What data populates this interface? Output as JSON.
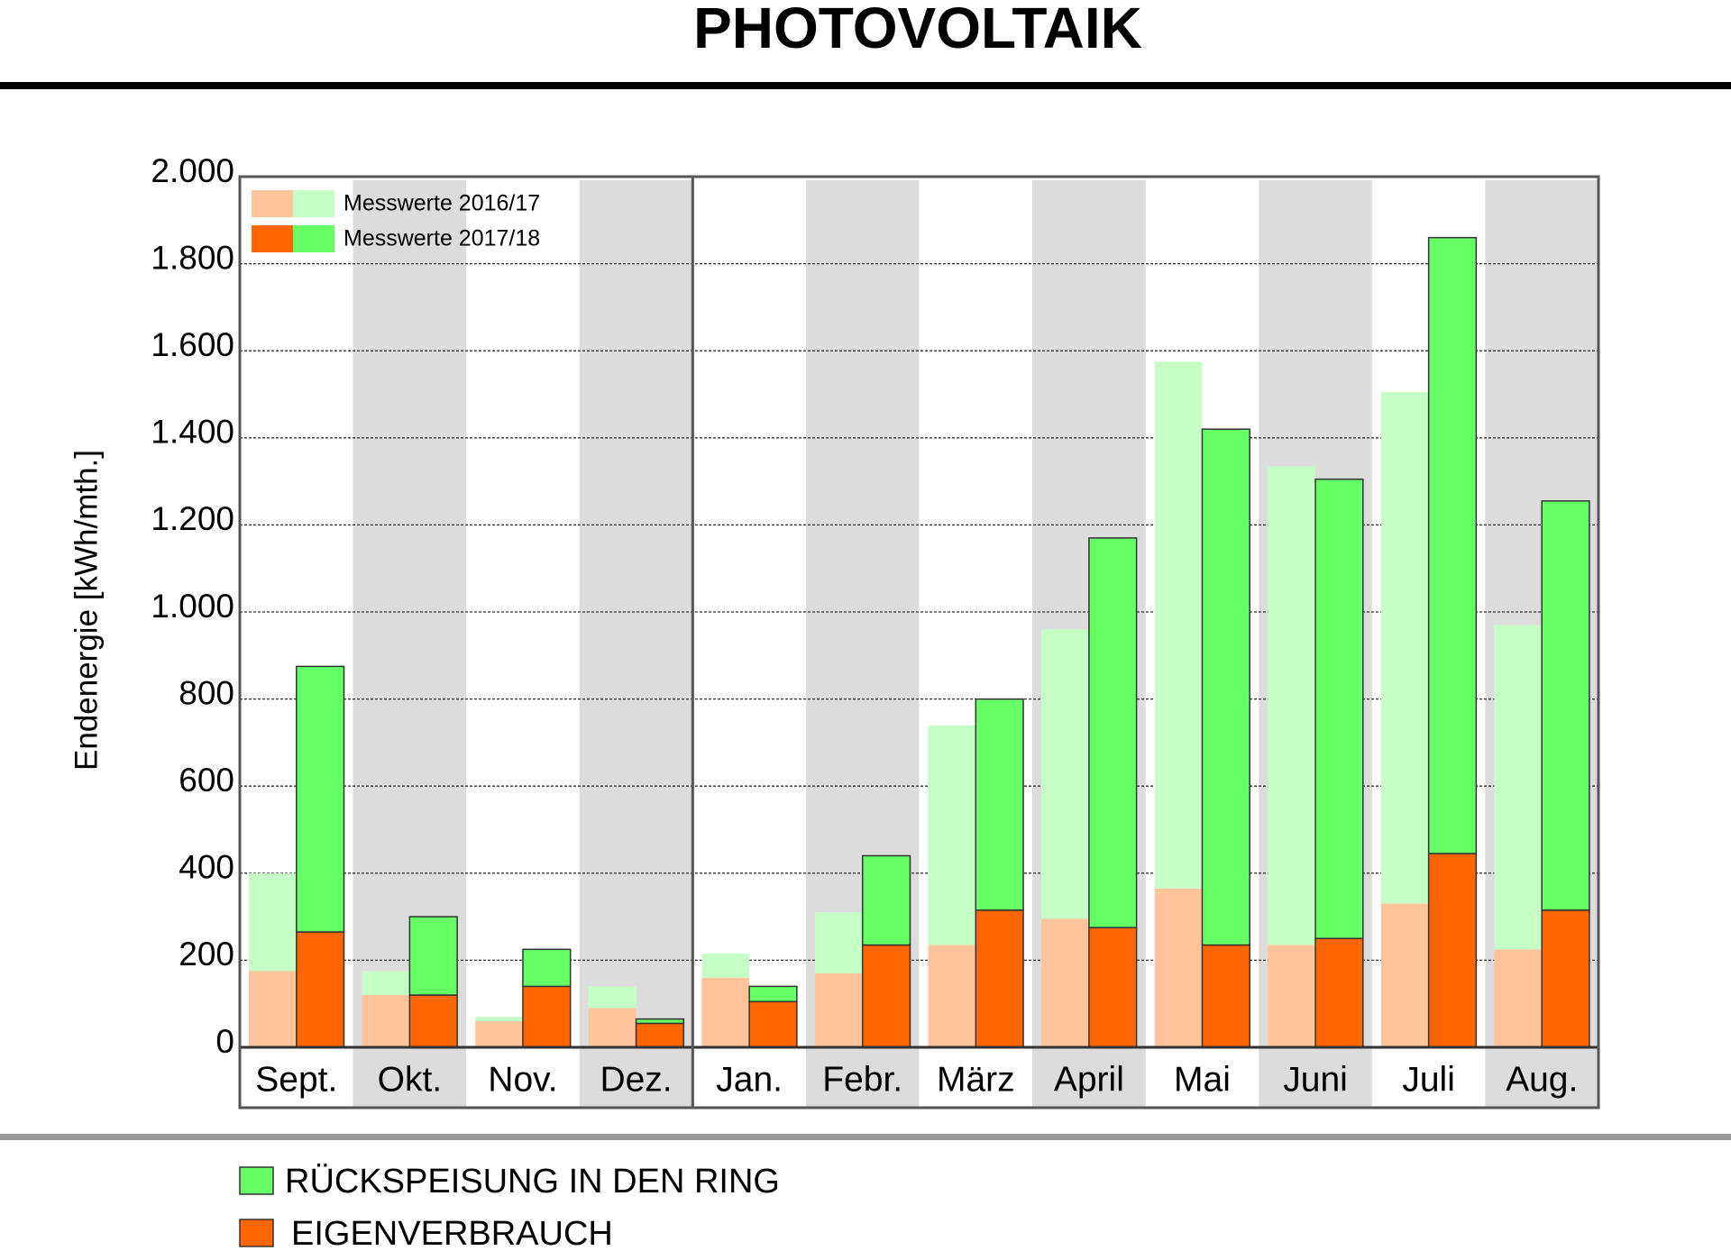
{
  "chart_data": {
    "type": "grouped_stacked_bar",
    "title": "PHOTOVOLTAIK",
    "y_label": "Endenergie [kWh/mth.]",
    "categories": [
      "Sept.",
      "Okt.",
      "Nov.",
      "Dez.",
      "Jan.",
      "Febr.",
      "März",
      "April",
      "Mai",
      "Juni",
      "Juli",
      "Aug."
    ],
    "groups": [
      "Messwerte 2016/17",
      "Messwerte 2017/18"
    ],
    "series": [
      {
        "name": "EIGENVERBRAUCH",
        "colors": [
          "#ffc49c",
          "#ff6600"
        ],
        "values": [
          [
            175,
            120,
            60,
            90,
            160,
            170,
            235,
            295,
            365,
            235,
            330,
            225
          ],
          [
            265,
            120,
            140,
            55,
            105,
            235,
            315,
            275,
            235,
            250,
            445,
            315
          ]
        ]
      },
      {
        "name": "RÜCKSPEISUNG IN DEN RING",
        "colors": [
          "#c6ffc6",
          "#66ff66"
        ],
        "values": [
          [
            225,
            55,
            10,
            50,
            55,
            140,
            505,
            665,
            1210,
            1100,
            1175,
            745
          ],
          [
            610,
            180,
            85,
            10,
            35,
            205,
            485,
            895,
            1185,
            1055,
            1415,
            940
          ]
        ]
      }
    ],
    "ylim": [
      0,
      2000
    ],
    "yticks": [
      0,
      200,
      400,
      600,
      800,
      {
        "value": 1000,
        "label": "1.000"
      },
      {
        "value": 1200,
        "label": "1.200"
      },
      {
        "value": 1400,
        "label": "1.400"
      },
      {
        "value": 1600,
        "label": "1.600"
      },
      {
        "value": 1800,
        "label": "1.800"
      },
      {
        "value": 2000,
        "label": "2.000"
      }
    ],
    "grid": true
  }
}
